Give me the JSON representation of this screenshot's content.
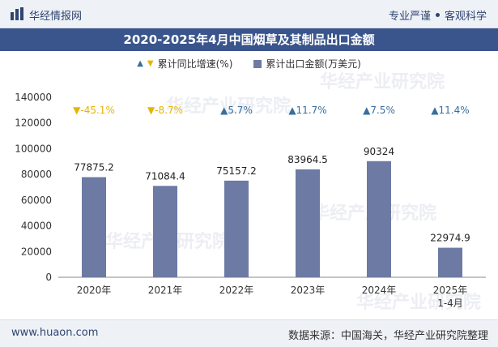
{
  "header": {
    "brand": "华经情报网",
    "tag_left": "专业严谨",
    "tag_right": "客观科学"
  },
  "chart_title": "2020-2025年4月中国烟草及其制品出口金额",
  "legend": {
    "growth_label": "累计同比增速(%)",
    "value_label": "累计出口金额(万美元)"
  },
  "watermark": "华经产业研究院",
  "footer": {
    "url": "www.huaon.com",
    "source": "数据来源：中国海关，华经产业研究院整理"
  },
  "colors": {
    "bar": "#6d7aa3",
    "up": "#3a6e9c",
    "down": "#e8b400",
    "title_bg": "#3a548c"
  },
  "chart_data": {
    "type": "bar",
    "categories": [
      "2020年",
      "2021年",
      "2022年",
      "2023年",
      "2024年",
      "2025年\n1-4月"
    ],
    "series": [
      {
        "name": "累计出口金额(万美元)",
        "values": [
          77875.2,
          71084.4,
          75157.2,
          83964.5,
          90324,
          22974.9
        ]
      },
      {
        "name": "累计同比增速(%)",
        "values": [
          -45.1,
          -8.7,
          5.7,
          11.7,
          7.5,
          11.4
        ]
      }
    ],
    "value_labels": [
      "77875.2",
      "71084.4",
      "75157.2",
      "83964.5",
      "90324",
      "22974.9"
    ],
    "growth_labels": [
      "-45.1%",
      "-8.7%",
      "5.7%",
      "11.7%",
      "7.5%",
      "11.4%"
    ],
    "yticks": [
      "0",
      "20000",
      "40000",
      "60000",
      "80000",
      "100000",
      "120000",
      "140000"
    ],
    "ylim": [
      0,
      140000
    ],
    "grid": false,
    "legend_position": "top-center"
  }
}
